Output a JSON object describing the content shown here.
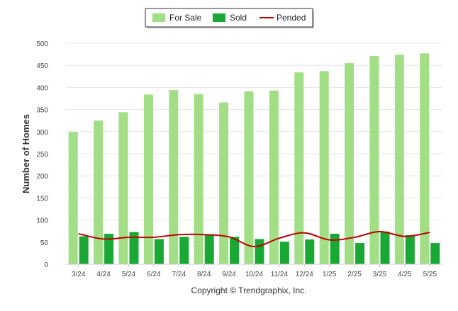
{
  "chart_data": {
    "type": "bar",
    "title": "",
    "xlabel": "",
    "ylabel": "Number of Homes",
    "ylim": [
      0,
      500
    ],
    "yticks": [
      0,
      50,
      100,
      150,
      200,
      250,
      300,
      350,
      400,
      450,
      500
    ],
    "grid": true,
    "legend_position": "top-center",
    "categories": [
      "3/24",
      "4/24",
      "5/24",
      "6/24",
      "7/24",
      "8/24",
      "9/24",
      "10/24",
      "11/24",
      "12/24",
      "1/25",
      "2/25",
      "3/25",
      "4/25",
      "5/25"
    ],
    "series": [
      {
        "name": "For Sale",
        "type": "bar",
        "color": "#a2de86",
        "values": [
          299,
          325,
          344,
          384,
          394,
          385,
          366,
          391,
          393,
          434,
          437,
          455,
          471,
          474,
          477
        ]
      },
      {
        "name": "Sold",
        "type": "bar",
        "color": "#1aa834",
        "values": [
          63,
          69,
          73,
          57,
          62,
          66,
          62,
          57,
          51,
          56,
          69,
          48,
          74,
          66,
          48
        ]
      },
      {
        "name": "Pended",
        "type": "line",
        "color": "#c00000",
        "values": [
          69,
          57,
          61,
          61,
          67,
          67,
          62,
          40,
          59,
          71,
          55,
          61,
          74,
          63,
          72
        ]
      }
    ],
    "footer": "Copyright © Trendgraphix, Inc."
  }
}
